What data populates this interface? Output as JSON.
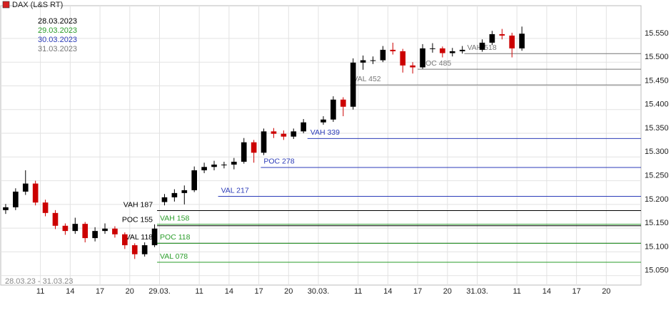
{
  "chart_data": {
    "type": "candlestick",
    "title": "DAX (L&S RT)",
    "range_label": "28.03.23 - 31.03.23",
    "title_marker_color": "#d62020",
    "up_color": "#000000",
    "down_color": "#cc0000",
    "grid": true,
    "xlim": [
      0,
      64.5
    ],
    "ylim": [
      15030,
      15619
    ],
    "xticks": [
      {
        "value": 4,
        "label": "11"
      },
      {
        "value": 7,
        "label": "14"
      },
      {
        "value": 10,
        "label": "17"
      },
      {
        "value": 13,
        "label": "20"
      },
      {
        "value": 16,
        "label": "29.03."
      },
      {
        "value": 20,
        "label": "11"
      },
      {
        "value": 23,
        "label": "14"
      },
      {
        "value": 26,
        "label": "17"
      },
      {
        "value": 29,
        "label": "20"
      },
      {
        "value": 32,
        "label": "30.03."
      },
      {
        "value": 36,
        "label": "11"
      },
      {
        "value": 39,
        "label": "14"
      },
      {
        "value": 42,
        "label": "17"
      },
      {
        "value": 45,
        "label": "20"
      },
      {
        "value": 48,
        "label": "31.03."
      },
      {
        "value": 52,
        "label": "11"
      },
      {
        "value": 55,
        "label": "14"
      },
      {
        "value": 58,
        "label": "17"
      },
      {
        "value": 61,
        "label": "20"
      }
    ],
    "yticks": [
      {
        "value": 15050,
        "label": "15.050"
      },
      {
        "value": 15100,
        "label": "15.100"
      },
      {
        "value": 15150,
        "label": "15.150"
      },
      {
        "value": 15200,
        "label": "15.200"
      },
      {
        "value": 15250,
        "label": "15.250"
      },
      {
        "value": 15300,
        "label": "15.300"
      },
      {
        "value": 15350,
        "label": "15.350"
      },
      {
        "value": 15400,
        "label": "15.400"
      },
      {
        "value": 15450,
        "label": "15.450"
      },
      {
        "value": 15500,
        "label": "15.500"
      },
      {
        "value": 15550,
        "label": "15.550"
      }
    ],
    "x": [
      0.5,
      1.5,
      2.5,
      3.5,
      4.5,
      5.5,
      6.5,
      7.5,
      8.5,
      9.5,
      10.5,
      11.5,
      12.5,
      13.5,
      14.5,
      15.5,
      16.5,
      17.5,
      18.5,
      19.5,
      20.5,
      21.5,
      22.5,
      23.5,
      24.5,
      25.5,
      26.5,
      27.5,
      28.5,
      29.5,
      30.5,
      32.5,
      33.5,
      34.5,
      35.5,
      36.5,
      37.5,
      38.5,
      39.5,
      40.5,
      41.5,
      42.5,
      43.5,
      44.5,
      45.5,
      46.5,
      48.5,
      49.5,
      50.5,
      51.5,
      52.5
    ],
    "open": [
      15188,
      15194,
      15227,
      15244,
      15204,
      15182,
      15155,
      15144,
      15159,
      15129,
      15144,
      15149,
      15137,
      15114,
      15095,
      15114,
      15205,
      15215,
      15224,
      15230,
      15272,
      15279,
      15284,
      15284,
      15290,
      15331,
      15309,
      15354,
      15349,
      15343,
      15354,
      15373,
      15379,
      15421,
      15406,
      15499,
      15504,
      15504,
      15526,
      15523,
      15493,
      15489,
      15529,
      15529,
      15519,
      15523,
      15526,
      15541,
      15559,
      15556,
      15529
    ],
    "high": [
      15201,
      15234,
      15272,
      15250,
      15210,
      15188,
      15160,
      15172,
      15163,
      15152,
      15160,
      15154,
      15141,
      15118,
      15120,
      15158,
      15222,
      15232,
      15240,
      15280,
      15288,
      15292,
      15290,
      15298,
      15340,
      15336,
      15360,
      15361,
      15356,
      15360,
      15380,
      15386,
      15428,
      15426,
      15508,
      15514,
      15512,
      15534,
      15541,
      15528,
      15500,
      15538,
      15540,
      15533,
      15530,
      15534,
      15548,
      15566,
      15570,
      15562,
      15575
    ],
    "low": [
      15180,
      15188,
      15220,
      15198,
      15175,
      15148,
      15136,
      15138,
      15120,
      15122,
      15138,
      15130,
      15106,
      15085,
      15090,
      15110,
      15198,
      15206,
      15200,
      15226,
      15266,
      15272,
      15276,
      15274,
      15286,
      15288,
      15304,
      15340,
      15336,
      15338,
      15350,
      15368,
      15374,
      15386,
      15400,
      15484,
      15496,
      15500,
      15516,
      15478,
      15476,
      15486,
      15520,
      15510,
      15512,
      15518,
      15522,
      15536,
      15548,
      15510,
      15524
    ],
    "close": [
      15194,
      15227,
      15244,
      15204,
      15182,
      15155,
      15144,
      15159,
      15129,
      15144,
      15149,
      15137,
      15114,
      15095,
      15114,
      15149,
      15215,
      15224,
      15230,
      15272,
      15279,
      15284,
      15284,
      15290,
      15331,
      15309,
      15354,
      15349,
      15343,
      15354,
      15373,
      15379,
      15421,
      15406,
      15499,
      15504,
      15504,
      15526,
      15523,
      15493,
      15489,
      15529,
      15529,
      15519,
      15523,
      15526,
      15541,
      15559,
      15556,
      15529,
      15560
    ],
    "levels": [
      {
        "name": "28.03.2023",
        "color": "#000000",
        "lines": [
          {
            "label": "VAH 187",
            "value": 15187,
            "x": 15.75
          },
          {
            "label": "POC 155",
            "value": 15155,
            "x": 15.75
          },
          {
            "label": "VAL 118",
            "value": 15118,
            "x": 15.75
          }
        ]
      },
      {
        "name": "29.03.2023",
        "color": "#2a9d2a",
        "lines": [
          {
            "label": "VAH 158",
            "value": 15158,
            "x": 15.75
          },
          {
            "label": "POC 118",
            "value": 15118,
            "x": 15.75
          },
          {
            "label": "VAL 078",
            "value": 15078,
            "x": 15.75
          }
        ]
      },
      {
        "name": "30.03.2023",
        "color": "#2b3bb8",
        "lines": [
          {
            "label": "VAH 339",
            "value": 15339,
            "x": 30.9
          },
          {
            "label": "POC 278",
            "value": 15278,
            "x": 26.2
          },
          {
            "label": "VAL 217",
            "value": 15217,
            "x": 21.9
          }
        ]
      },
      {
        "name": "31.03.2023",
        "color": "#777777",
        "lines": [
          {
            "label": "VAH 518",
            "value": 15518,
            "x": 46.7
          },
          {
            "label": "POC 485",
            "value": 15485,
            "x": 42
          },
          {
            "label": "VAL 452",
            "value": 15452,
            "x": 35.2
          }
        ]
      }
    ]
  }
}
